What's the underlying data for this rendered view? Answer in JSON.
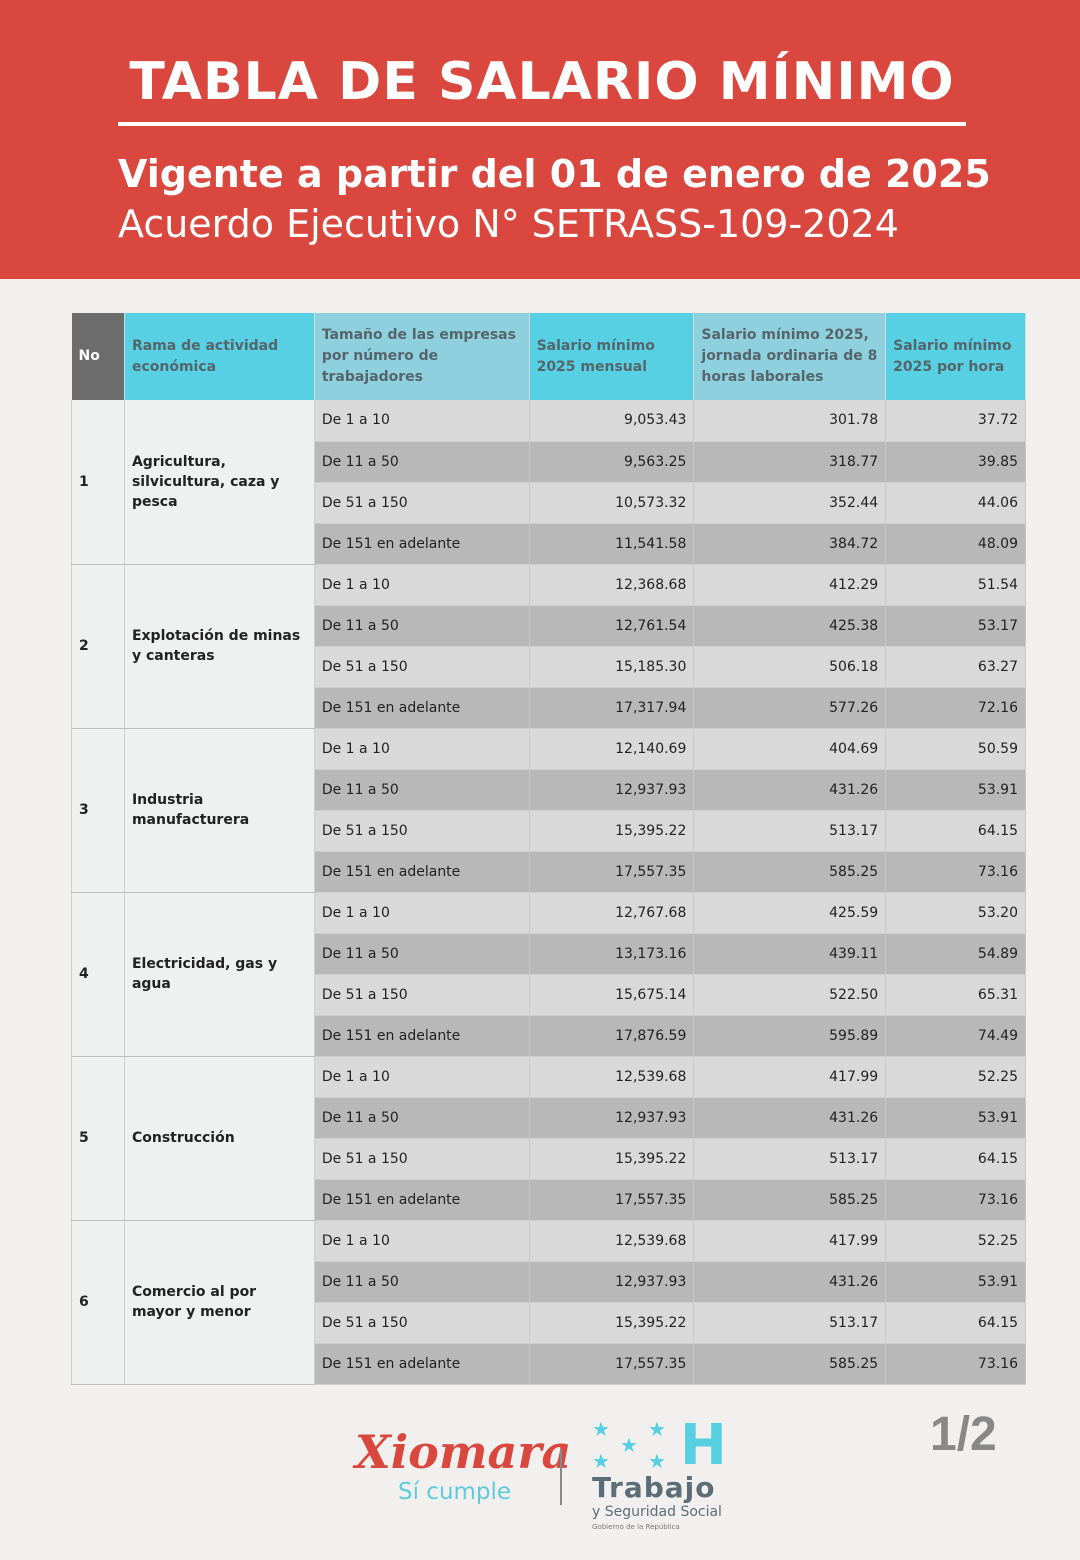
{
  "header": {
    "title": "TABLA DE SALARIO MÍNIMO",
    "subtitle": "Vigente a partir del 01 de enero de 2025",
    "agreement": "Acuerdo Ejecutivo N° SETRASS-109-2024",
    "background_color": "#d9473e"
  },
  "table": {
    "columns": [
      "No",
      "Rama de actividad económica",
      "Tamaño de las empresas por número de trabajadores",
      "Salario mínimo 2025 mensual",
      "Salario mínimo 2025, jornada ordinaria de 8 horas laborales",
      "Salario mínimo 2025 por hora"
    ],
    "groups": [
      {
        "no": "1",
        "rama": "Agricultura, silvicultura, caza y pesca",
        "rows": [
          [
            "De 1 a 10",
            "9,053.43",
            "301.78",
            "37.72"
          ],
          [
            "De 11 a 50",
            "9,563.25",
            "318.77",
            "39.85"
          ],
          [
            "De 51 a 150",
            "10,573.32",
            "352.44",
            "44.06"
          ],
          [
            "De 151 en adelante",
            "11,541.58",
            "384.72",
            "48.09"
          ]
        ]
      },
      {
        "no": "2",
        "rama": "Explotación de minas y canteras",
        "rows": [
          [
            "De 1 a 10",
            "12,368.68",
            "412.29",
            "51.54"
          ],
          [
            "De 11 a 50",
            "12,761.54",
            "425.38",
            "53.17"
          ],
          [
            "De 51 a 150",
            "15,185.30",
            "506.18",
            "63.27"
          ],
          [
            "De 151 en adelante",
            "17,317.94",
            "577.26",
            "72.16"
          ]
        ]
      },
      {
        "no": "3",
        "rama": "Industria manufacturera",
        "rows": [
          [
            "De 1 a 10",
            "12,140.69",
            "404.69",
            "50.59"
          ],
          [
            "De 11 a 50",
            "12,937.93",
            "431.26",
            "53.91"
          ],
          [
            "De 51 a 150",
            "15,395.22",
            "513.17",
            "64.15"
          ],
          [
            "De 151 en adelante",
            "17,557.35",
            "585.25",
            "73.16"
          ]
        ]
      },
      {
        "no": "4",
        "rama": "Electricidad, gas y agua",
        "rows": [
          [
            "De 1 a 10",
            "12,767.68",
            "425.59",
            "53.20"
          ],
          [
            "De 11 a 50",
            "13,173.16",
            "439.11",
            "54.89"
          ],
          [
            "De 51 a 150",
            "15,675.14",
            "522.50",
            "65.31"
          ],
          [
            "De 151 en adelante",
            "17,876.59",
            "595.89",
            "74.49"
          ]
        ]
      },
      {
        "no": "5",
        "rama": "Construcción",
        "rows": [
          [
            "De 1 a 10",
            "12,539.68",
            "417.99",
            "52.25"
          ],
          [
            "De 11 a 50",
            "12,937.93",
            "431.26",
            "53.91"
          ],
          [
            "De 51 a 150",
            "15,395.22",
            "513.17",
            "64.15"
          ],
          [
            "De 151 en adelante",
            "17,557.35",
            "585.25",
            "73.16"
          ]
        ]
      },
      {
        "no": "6",
        "rama": "Comercio al por mayor y menor",
        "rows": [
          [
            "De 1 a 10",
            "12,539.68",
            "417.99",
            "52.25"
          ],
          [
            "De 11 a 50",
            "12,937.93",
            "431.26",
            "53.91"
          ],
          [
            "De 51 a 150",
            "15,395.22",
            "513.17",
            "64.15"
          ],
          [
            "De 151 en adelante",
            "17,557.35",
            "585.25",
            "73.16"
          ]
        ]
      }
    ]
  },
  "footer": {
    "logo_xiomara": "Xiomara",
    "logo_tagline": "Sí cumple",
    "logo_trabajo": "Trabajo",
    "logo_trabajo_sub": "y Seguridad Social",
    "logo_gobierno": "Gobierno de la República",
    "logo_letter": "H",
    "page_indicator": "1/2",
    "accent_cyan": "#56cfe1"
  }
}
